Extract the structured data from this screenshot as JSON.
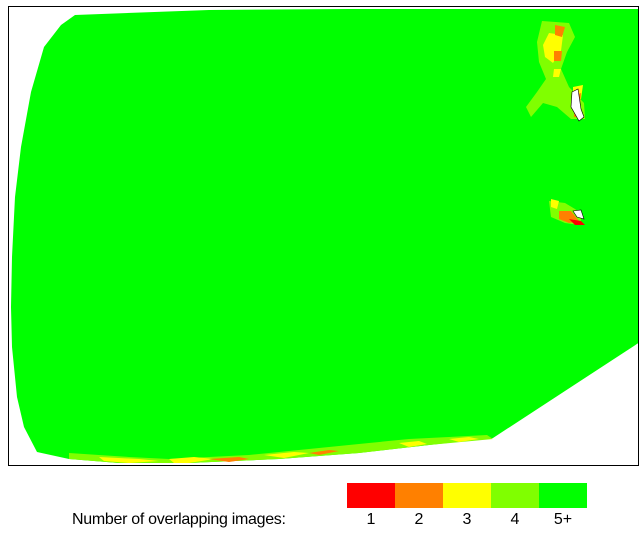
{
  "map": {
    "colors": {
      "overlap_1": "#ff0000",
      "overlap_2": "#ff8000",
      "overlap_3": "#ffff00",
      "overlap_4": "#80ff00",
      "overlap_5plus": "#00ff00",
      "background": "#ffffff"
    }
  },
  "legend": {
    "label": "Number of overlapping images:",
    "values": [
      "1",
      "2",
      "3",
      "4",
      "5+"
    ],
    "colors": [
      "#ff0000",
      "#ff8000",
      "#ffff00",
      "#80ff00",
      "#00ff00"
    ]
  }
}
